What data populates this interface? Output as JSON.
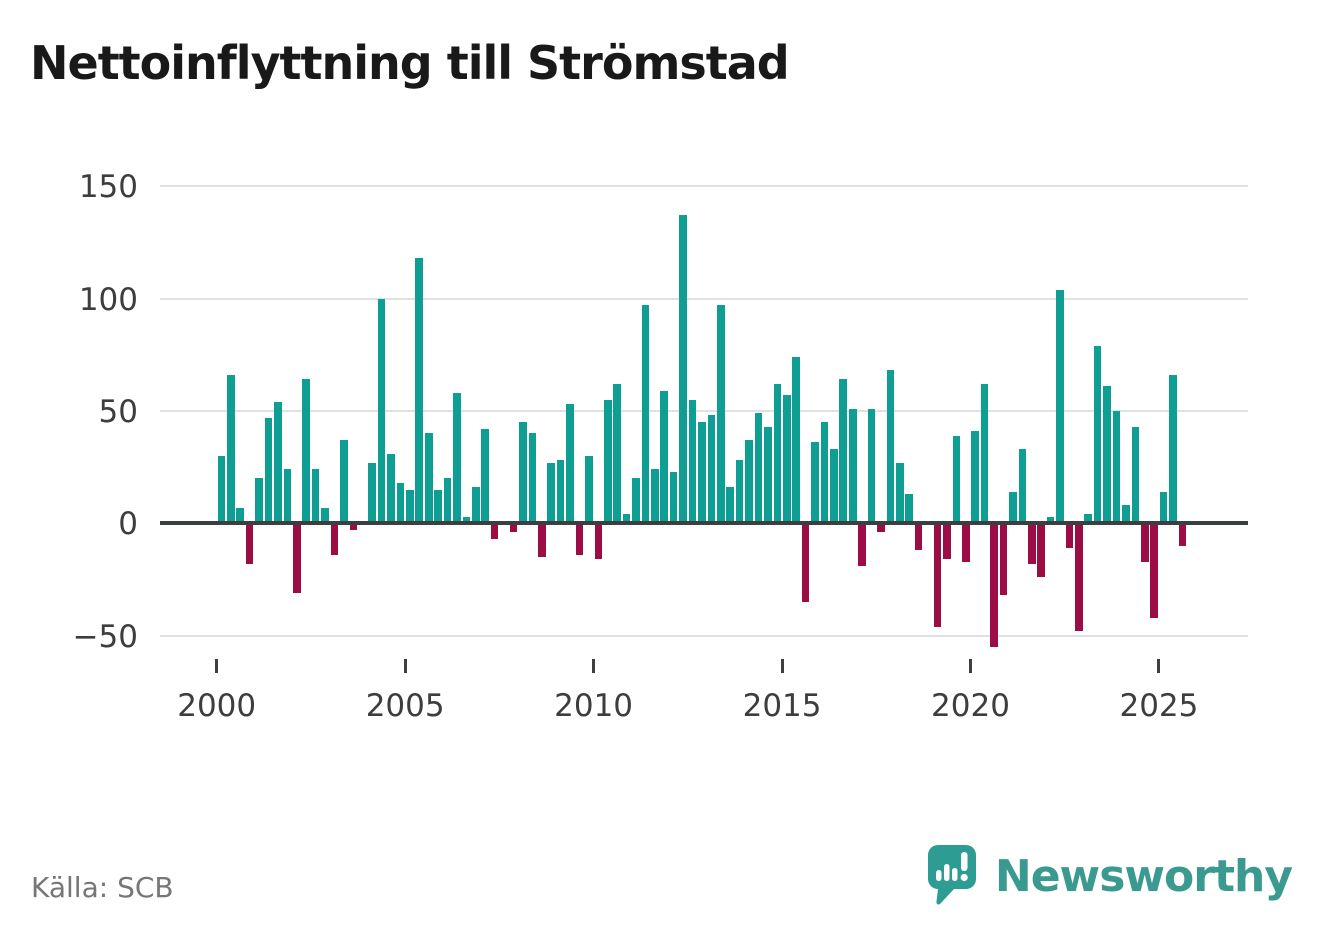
{
  "title": "Nettoinflyttning till Strömstad",
  "source": "Källa: SCB",
  "branding": {
    "name": "Newsworthy",
    "icon": "newsworthy-speech-bubble-bar-chart-icon"
  },
  "colors": {
    "positive_bar": "#0e9e93",
    "negative_bar": "#9c0d45",
    "zero_axis": "#3a3f3f",
    "gridline": "#e1e1e1",
    "axis_text": "#3d3d3d",
    "title_text": "#191919",
    "source_text": "#767676",
    "brand_teal": "#3b9a90"
  },
  "chart_data": {
    "type": "bar",
    "title": "Nettoinflyttning till Strömstad",
    "xlabel": "",
    "ylabel": "",
    "frequency": "quarterly",
    "start_period": {
      "year": 2000,
      "quarter": 1
    },
    "end_period": {
      "year": 2025,
      "quarter": 3
    },
    "y_ticks": [
      150,
      100,
      50,
      0,
      -50
    ],
    "ylim": [
      -70,
      157
    ],
    "x_tick_years": [
      2000,
      2005,
      2010,
      2015,
      2020,
      2025
    ],
    "x_tick_labels": [
      "2000",
      "2005",
      "2010",
      "2015",
      "2020",
      "2025"
    ],
    "grid": true,
    "legend": false,
    "values": [
      30,
      66,
      7,
      -18,
      20,
      47,
      54,
      24,
      -31,
      64,
      24,
      7,
      -14,
      37,
      -3,
      0,
      27,
      100,
      31,
      18,
      15,
      118,
      40,
      15,
      20,
      58,
      3,
      16,
      42,
      -7,
      0,
      -4,
      45,
      40,
      -15,
      27,
      28,
      53,
      -14,
      30,
      -16,
      55,
      62,
      4,
      20,
      97,
      24,
      59,
      23,
      137,
      55,
      45,
      48,
      97,
      16,
      28,
      37,
      49,
      43,
      62,
      57,
      74,
      -35,
      36,
      45,
      33,
      64,
      51,
      -19,
      51,
      -4,
      68,
      27,
      13,
      -12,
      0,
      -46,
      -16,
      39,
      -17,
      41,
      62,
      -55,
      -32,
      14,
      33,
      -18,
      -24,
      3,
      104,
      -11,
      -48,
      4,
      79,
      61,
      50,
      8,
      43,
      -17,
      -42,
      14,
      66,
      -10
    ]
  }
}
